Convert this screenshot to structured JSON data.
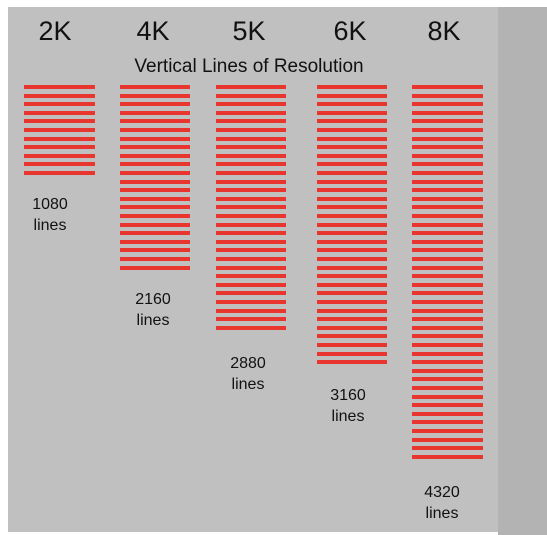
{
  "title": "Vertical Lines of Resolution",
  "bar_color": "#e8362f",
  "resolutions": [
    {
      "name": "2K",
      "lines": "1080",
      "unit": "lines"
    },
    {
      "name": "4K",
      "lines": "2160",
      "unit": "lines"
    },
    {
      "name": "5K",
      "lines": "2880",
      "unit": "lines"
    },
    {
      "name": "6K",
      "lines": "3160",
      "unit": "lines"
    },
    {
      "name": "8K",
      "lines": "4320",
      "unit": "lines"
    }
  ]
}
